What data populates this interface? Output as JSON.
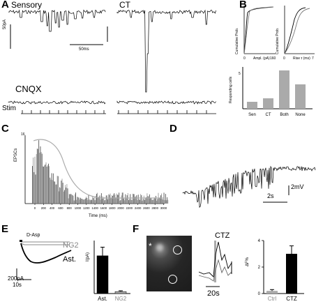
{
  "panel_letters": [
    "A",
    "B",
    "C",
    "D",
    "E",
    "F"
  ],
  "A": {
    "sensory_label": "Sensory",
    "ct_label": "CT",
    "cnqx_label": "CNQX",
    "stim_label": "Stim",
    "scale_y": "50pA",
    "scale_x": "50ms"
  },
  "B": {
    "cdf1_ylabel": "Cumulative Prob.",
    "cdf1_xlabel": "Ampl. (pA)",
    "cdf1_xmin": "0",
    "cdf1_xmax": "160",
    "cdf2_ylabel": "Cumulative Prob.",
    "cdf2_xlabel": "Rise τ (ms)",
    "cdf2_xmin": "0",
    "cdf2_xmax": "7",
    "bar_ylabel": "Responding cells",
    "bar_ytick": "5"
  },
  "C": {
    "ylabel": "EPSCs",
    "xlabel": "Time (ms)",
    "ytick_top": "16",
    "xticks": [
      "0",
      "200",
      "400",
      "600",
      "800",
      "1000",
      "1200",
      "1400",
      "1600",
      "1800",
      "2000",
      "2200",
      "2400",
      "2600",
      "2800",
      "3000"
    ]
  },
  "D": {
    "scale_y": "2mV",
    "scale_x": "2s"
  },
  "E": {
    "drug_label": "D-Asp",
    "ng2_trace_label": "NG2",
    "ast_trace_label": "Ast.",
    "scale_y": "200pA",
    "scale_x": "10s",
    "bar_ylabel": "I(pA)"
  },
  "F": {
    "asterisk": "*",
    "trace_label": "CTZ",
    "scale_x": "20s",
    "bar_ylabel": "ΔF%",
    "bar_yticks": [
      "4",
      "2",
      "0"
    ]
  },
  "chart_data": [
    {
      "type": "bar",
      "categories": [
        "Sen",
        "CT",
        "Both",
        "None"
      ],
      "values": [
        2,
        3,
        11,
        7
      ],
      "ylabel": "Responding cells"
    },
    {
      "type": "bar",
      "categories": [
        "Ast.",
        "NG2"
      ],
      "values": [
        285,
        15
      ],
      "errors": [
        65,
        6
      ],
      "ylabel": "I(pA)",
      "ylim": [
        0,
        400
      ]
    },
    {
      "type": "bar",
      "categories": [
        "Ctrl",
        "CTZ"
      ],
      "values": [
        0.2,
        3.0
      ],
      "errors": [
        0.1,
        0.6
      ],
      "ylabel": "ΔF%",
      "ylim": [
        0,
        4
      ]
    }
  ]
}
